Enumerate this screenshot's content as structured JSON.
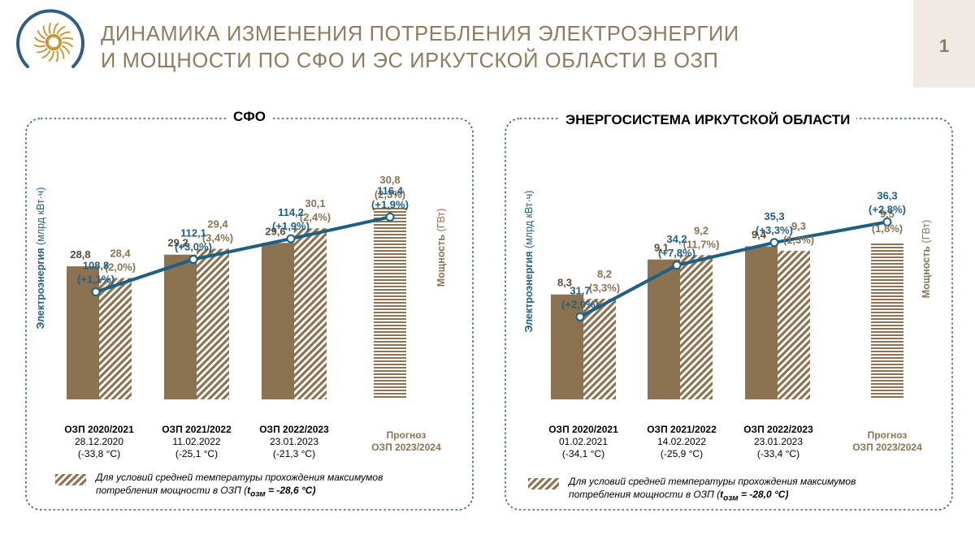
{
  "header": {
    "title_line1": "ДИНАМИКА ИЗМЕНЕНИЯ ПОТРЕБЛЕНИЯ ЭЛЕКТРОЭНЕРГИИ",
    "title_line2": "И МОЩНОСТИ ПО СФО И ЭС ИРКУТСКОЙ ОБЛАСТИ В ОЗП",
    "page_number": "1"
  },
  "colors": {
    "bar": "#8b7352",
    "line": "#1e5f84",
    "frame": "#2e5b84",
    "title": "#8f7b5e"
  },
  "chart_data": [
    {
      "type": "bar+line",
      "title": "СФО",
      "ylabel_energy": "Электроэнергия",
      "ylabel_energy_unit": "(млрд кВт·ч)",
      "ylabel_power": "Мощность",
      "ylabel_power_unit": "(ГВт)",
      "categories": [
        {
          "name": "ОЗП 2020/2021",
          "date": "28.12.2020",
          "temp": "(-33,8 °С)"
        },
        {
          "name": "ОЗП 2021/2022",
          "date": "11.02.2022",
          "temp": "(-25,1 °С)"
        },
        {
          "name": "ОЗП 2022/2023",
          "date": "23.01.2023",
          "temp": "(-21,3 °С)"
        },
        {
          "name": "Прогноз",
          "date": "ОЗП 2023/2024",
          "temp": ""
        }
      ],
      "power_actual": [
        28.8,
        29.2,
        29.6,
        null
      ],
      "power_actual_labels": [
        "28,8",
        "29,2",
        "29,6",
        ""
      ],
      "power_normalized": [
        28.4,
        29.4,
        30.1,
        30.8
      ],
      "power_normalized_labels": [
        [
          "28,4",
          "(2,0%)"
        ],
        [
          "29,4",
          "(3,4%)"
        ],
        [
          "30,1",
          "(2,4%)"
        ],
        [
          "30,8",
          "(2,3%)"
        ]
      ],
      "energy": [
        108.8,
        112.1,
        114.2,
        116.4
      ],
      "energy_labels": [
        [
          "108,8",
          "(+1,1%)"
        ],
        [
          "112,1",
          "(+3,0%)"
        ],
        [
          "114,2",
          "(+1,9%)"
        ],
        [
          "116,4",
          "(+1,9%)"
        ]
      ],
      "power_range": [
        24.25,
        31.8
      ],
      "energy_range": [
        97.9,
        120.3
      ],
      "legend_text_1": "Для условий средней температуры прохождения максимумов",
      "legend_text_2": "потребления мощности в ОЗП (",
      "legend_t": "t",
      "legend_t_sub": "озм",
      "legend_t_value": " = -28,6 °С)"
    },
    {
      "type": "bar+line",
      "title": "ЭНЕРГОСИСТЕМА ИРКУТСКОЙ ОБЛАСТИ",
      "ylabel_energy": "Электроэнергия",
      "ylabel_energy_unit": "(млрд кВт·ч)",
      "ylabel_power": "Мощность",
      "ylabel_power_unit": "(ГВт)",
      "categories": [
        {
          "name": "ОЗП 2020/2021",
          "date": "01.02.2021",
          "temp": "(-34,1 °С)"
        },
        {
          "name": "ОЗП 2021/2022",
          "date": "14.02.2022",
          "temp": "(-25,9 °С)"
        },
        {
          "name": "ОЗП 2022/2023",
          "date": "23.01.2023",
          "temp": "(-33,4 °С)"
        },
        {
          "name": "Прогноз",
          "date": "ОЗП 2023/2024",
          "temp": ""
        }
      ],
      "power_actual": [
        8.3,
        9.1,
        9.4,
        null
      ],
      "power_actual_labels": [
        "8,3",
        "9,1",
        "9,4",
        ""
      ],
      "power_normalized": [
        8.2,
        9.2,
        9.3,
        9.5
      ],
      "power_normalized_labels": [
        [
          "8,2",
          "(3,3%)"
        ],
        [
          "9,2",
          "(11,7%)"
        ],
        [
          "9,3",
          "(1,3%)"
        ],
        [
          "9,5",
          "(1,8%)"
        ]
      ],
      "energy": [
        31.7,
        34.2,
        35.3,
        36.3
      ],
      "energy_labels": [
        [
          "31,7",
          "(+2,0%)"
        ],
        [
          "34,2",
          "(+7,8%)"
        ],
        [
          "35,3",
          "(+3,3%)"
        ],
        [
          "36,3",
          "(+2,8%)"
        ]
      ],
      "power_range": [
        5.9,
        10.95
      ],
      "energy_range": [
        27.7,
        38.4
      ],
      "legend_text_1": "Для условий средней температуры прохождения максимумов",
      "legend_text_2": "потребления мощности в ОЗП (",
      "legend_t": "t",
      "legend_t_sub": "озм",
      "legend_t_value": " = -28,0 °С)"
    }
  ]
}
